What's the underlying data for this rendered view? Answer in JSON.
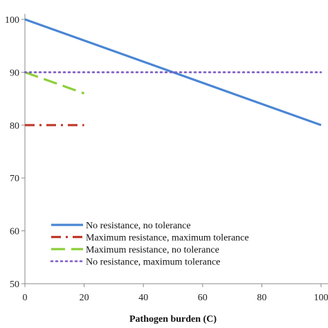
{
  "chart_data": {
    "type": "line",
    "title": "",
    "xlabel": "Pathogen burden (C)",
    "ylabel": "",
    "xlim": [
      0,
      100
    ],
    "ylim": [
      50,
      100
    ],
    "x_ticks": [
      "0",
      "20",
      "40",
      "60",
      "80",
      "100"
    ],
    "y_ticks": [
      "50",
      "60",
      "70",
      "80",
      "90",
      "100"
    ],
    "grid": false,
    "legend_position": "bottom-left",
    "series": [
      {
        "name": "No resistance, no tolerance",
        "color": "#4a86d4",
        "style": "solid",
        "x": [
          0,
          100
        ],
        "y": [
          100,
          80
        ]
      },
      {
        "name": "Maximum resistance, maximum tolerance",
        "color": "#c0392b",
        "style": "dash-dot",
        "x": [
          0,
          20
        ],
        "y": [
          80,
          80
        ]
      },
      {
        "name": "Maximum resistance, no tolerance",
        "color": "#8ccf3a",
        "style": "dashed",
        "x": [
          0,
          20
        ],
        "y": [
          90,
          86
        ]
      },
      {
        "name": "No resistance, maximum tolerance",
        "color": "#7b5cc4",
        "style": "dotted",
        "x": [
          0,
          100
        ],
        "y": [
          90,
          90
        ]
      }
    ]
  }
}
